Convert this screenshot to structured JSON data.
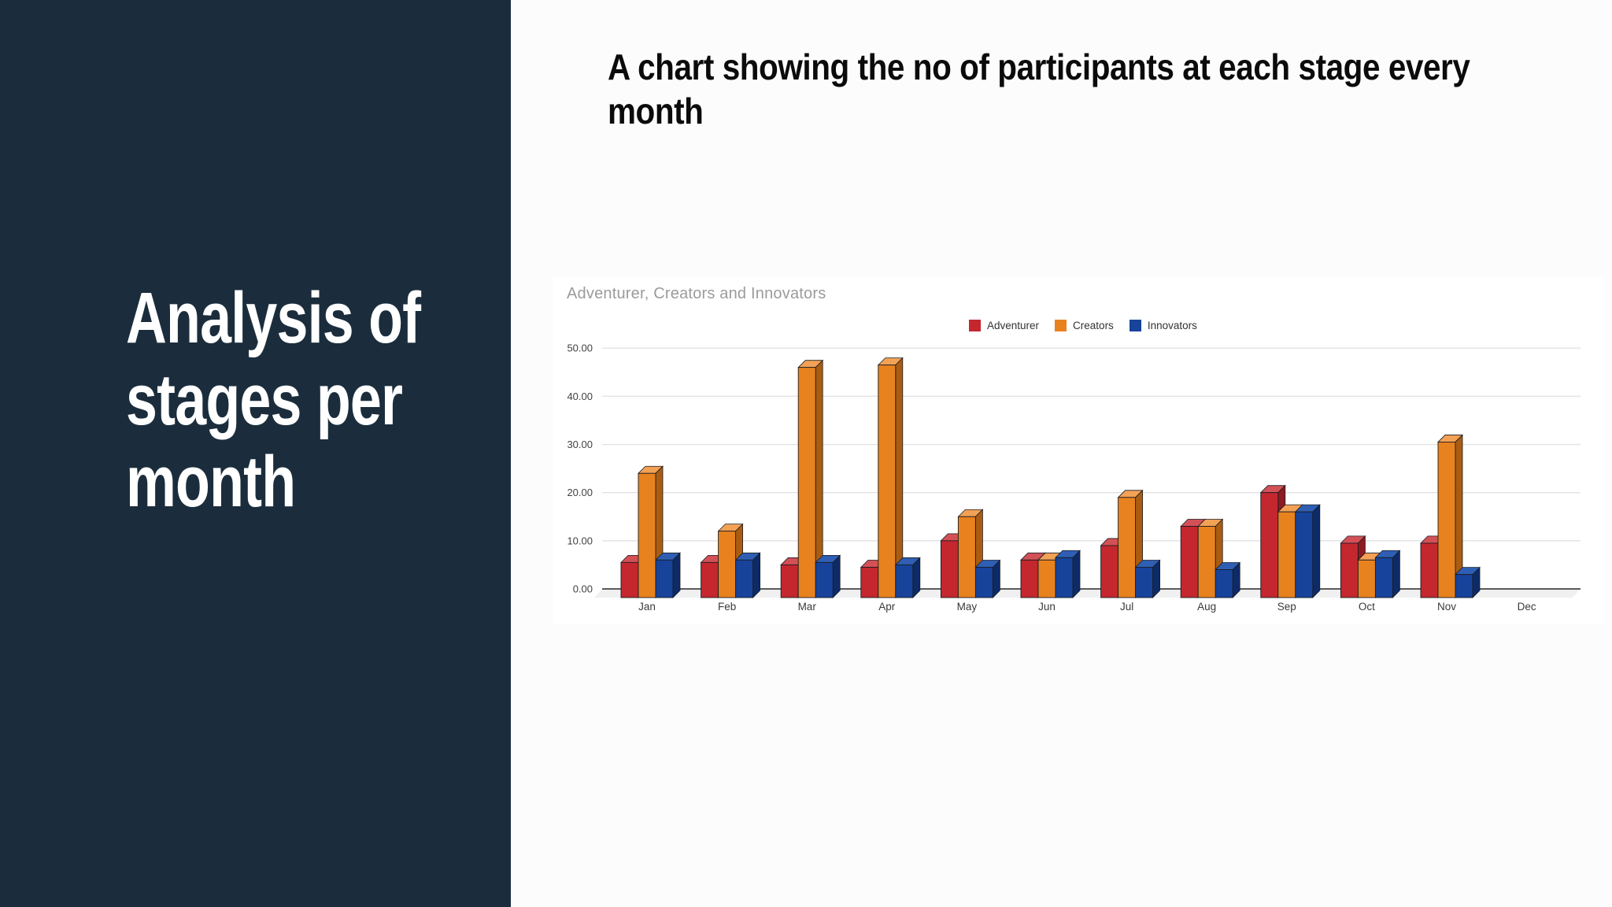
{
  "sidebar": {
    "title_lines": [
      "Analysis of",
      "stages per",
      "month"
    ],
    "bg_color": "#1B2D3C"
  },
  "header": {
    "title_lines": [
      "A chart showing the no of participants at each stage every",
      "month"
    ]
  },
  "chart_data": {
    "type": "bar",
    "is3d": true,
    "title": "Adventurer, Creators and Innovators",
    "categories": [
      "Jan",
      "Feb",
      "Mar",
      "Apr",
      "May",
      "Jun",
      "Jul",
      "Aug",
      "Sep",
      "Oct",
      "Nov",
      "Dec"
    ],
    "series": [
      {
        "name": "Adventurer",
        "color": "#C4272E",
        "top_color": "#D35057",
        "side_color": "#8E1B21",
        "values": [
          5.5,
          5.5,
          5,
          4.5,
          10,
          6,
          9,
          13,
          20,
          9.5,
          9.5,
          0
        ]
      },
      {
        "name": "Creators",
        "color": "#E8821E",
        "top_color": "#F2A155",
        "side_color": "#AA5D12",
        "values": [
          24,
          12,
          46,
          46.5,
          15,
          6,
          19,
          13,
          16,
          6,
          30.5,
          0
        ]
      },
      {
        "name": "Innovators",
        "color": "#17439B",
        "top_color": "#2F5FB5",
        "side_color": "#0D2B66",
        "values": [
          6,
          6,
          5.5,
          5,
          4.5,
          6.5,
          4.5,
          4,
          16,
          6.5,
          3,
          0
        ]
      }
    ],
    "ylim": [
      0,
      50
    ],
    "ytick_step": 10,
    "ytick_labels": [
      "0.00",
      "10.00",
      "20.00",
      "30.00",
      "40.00",
      "50.00"
    ],
    "xlabel": "",
    "ylabel": "",
    "grid": true,
    "legend_position": "top-right",
    "colors": {
      "grid_line": "#E2E2E2",
      "axis_line": "#5A5A5A",
      "floor": "#F0F0F0",
      "tick_text": "#424242",
      "month_text": "#3A3A3A",
      "bar_outline": "#1A1C22"
    }
  }
}
